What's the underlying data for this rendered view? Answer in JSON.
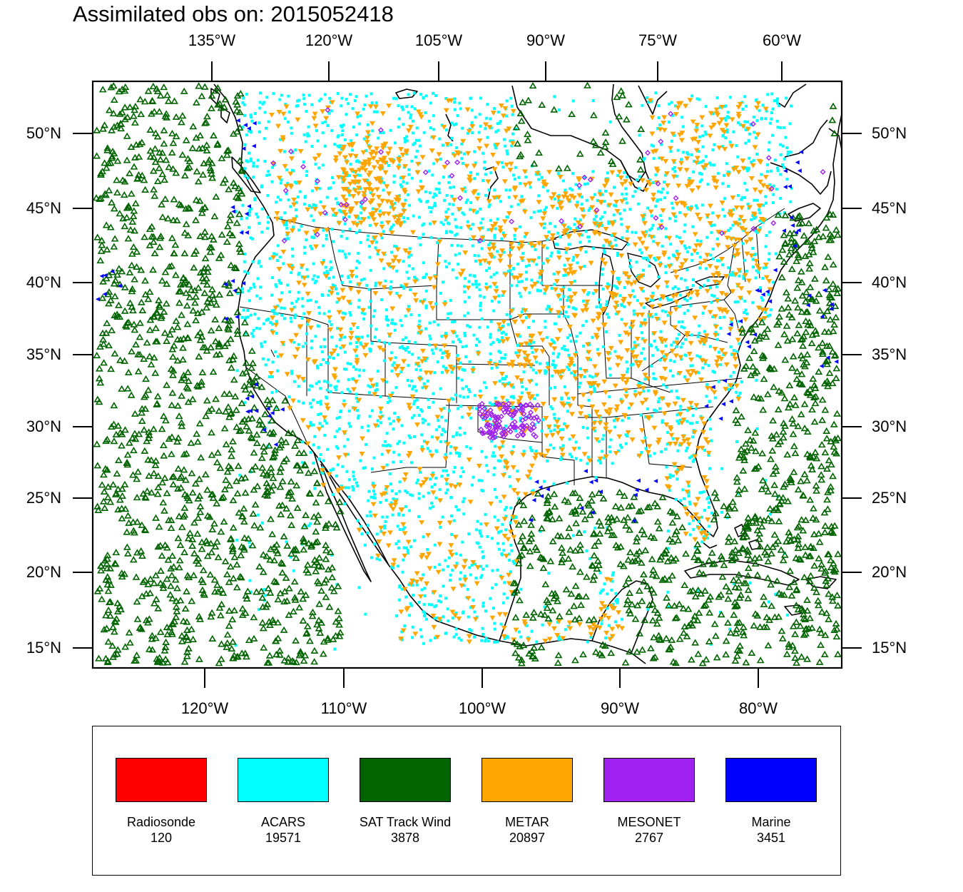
{
  "title": "Assimilated obs on: 2015052418",
  "axes": {
    "top_ticks": [
      "135°W",
      "120°W",
      "105°W",
      "90°W",
      "75°W",
      "60°W"
    ],
    "bottom_ticks": [
      "120°W",
      "110°W",
      "100°W",
      "90°W",
      "80°W"
    ],
    "lat_ticks": [
      "50°N",
      "45°N",
      "40°N",
      "35°N",
      "30°N",
      "25°N",
      "20°N",
      "15°N"
    ],
    "lat_range": [
      14.0,
      53.5
    ],
    "lon_range": [
      -128.0,
      -74.0
    ]
  },
  "legend": {
    "items": [
      {
        "label": "Radiosonde",
        "count": "120",
        "color": "#ff0000"
      },
      {
        "label": "ACARS",
        "count": "19571",
        "color": "#00ffff"
      },
      {
        "label": "SAT Track Wind",
        "count": "3878",
        "color": "#006400"
      },
      {
        "label": "METAR",
        "count": "20897",
        "color": "#ffa500"
      },
      {
        "label": "MESONET",
        "count": "2767",
        "color": "#a020f0"
      },
      {
        "label": "Marine",
        "count": "3451",
        "color": "#0000ff"
      }
    ]
  },
  "colors": {
    "acars": "#00ffff",
    "sat_track_wind": "#006400",
    "metar": "#ffa500",
    "mesonet": "#a020f0",
    "marine": "#0000ff"
  }
}
